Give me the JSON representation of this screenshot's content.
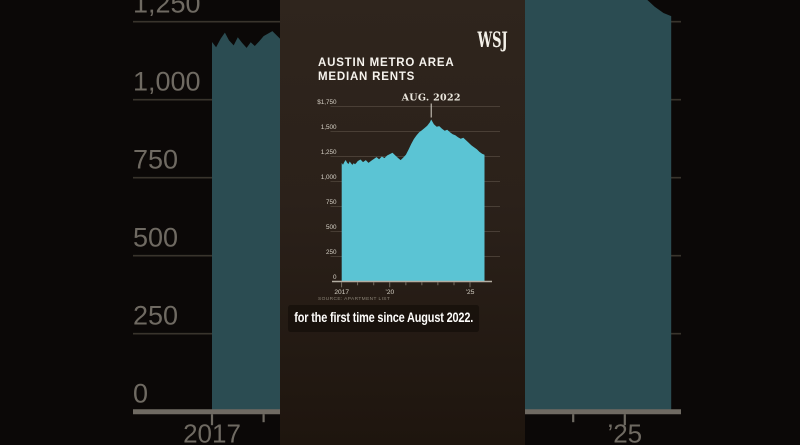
{
  "brand": {
    "logo_text": "WSJ"
  },
  "video": {
    "caption": "for the first time since August 2022."
  },
  "chart_data": {
    "type": "area",
    "title_lines": [
      "AUSTIN METRO AREA",
      "MEDIAN RENTS"
    ],
    "source": "SOURCE: APARTMENT LIST",
    "ylim": [
      0,
      1750
    ],
    "y_ticks": [
      1750,
      1500,
      1250,
      1000,
      750,
      500,
      250,
      0
    ],
    "y_tick_labels": [
      "$1,750",
      "1,500",
      "1,250",
      "1,000",
      "750",
      "500",
      "250",
      "0"
    ],
    "xlim": [
      2017,
      2025.9
    ],
    "x_ticks_labeled": [
      {
        "x": 2017,
        "label": "2017"
      },
      {
        "x": 2020,
        "label": "’20"
      },
      {
        "x": 2025,
        "label": "’25"
      }
    ],
    "x_minor_ticks_every_year": true,
    "grid": "horizontal",
    "legend": null,
    "annotation": {
      "label": "AUG. 2022",
      "x": 2022.58,
      "value": 1620
    },
    "series": [
      {
        "name": "Austin metro area median rent ($)",
        "x": [
          2017.0,
          2017.08,
          2017.17,
          2017.25,
          2017.33,
          2017.42,
          2017.5,
          2017.58,
          2017.67,
          2017.75,
          2017.83,
          2017.92,
          2018.0,
          2018.17,
          2018.33,
          2018.5,
          2018.67,
          2018.83,
          2019.0,
          2019.17,
          2019.33,
          2019.5,
          2019.67,
          2019.83,
          2020.0,
          2020.17,
          2020.33,
          2020.5,
          2020.67,
          2020.83,
          2021.0,
          2021.17,
          2021.33,
          2021.5,
          2021.67,
          2021.83,
          2022.0,
          2022.17,
          2022.33,
          2022.5,
          2022.58,
          2022.75,
          2022.92,
          2023.08,
          2023.25,
          2023.42,
          2023.58,
          2023.75,
          2023.92,
          2024.08,
          2024.25,
          2024.42,
          2024.58,
          2024.75,
          2024.92,
          2025.08,
          2025.25,
          2025.42,
          2025.58,
          2025.75,
          2025.9
        ],
        "values": [
          1185,
          1168,
          1196,
          1215,
          1190,
          1174,
          1200,
          1183,
          1166,
          1184,
          1172,
          1188,
          1204,
          1220,
          1194,
          1214,
          1186,
          1206,
          1225,
          1244,
          1222,
          1250,
          1234,
          1260,
          1274,
          1288,
          1262,
          1238,
          1214,
          1238,
          1268,
          1320,
          1375,
          1425,
          1462,
          1492,
          1512,
          1535,
          1558,
          1592,
          1620,
          1572,
          1548,
          1554,
          1528,
          1508,
          1518,
          1492,
          1472,
          1462,
          1442,
          1428,
          1438,
          1412,
          1388,
          1362,
          1342,
          1322,
          1298,
          1278,
          1268
        ]
      }
    ],
    "colors": {
      "area": "#5bc4d4",
      "area_dim_background": "#2b4c52",
      "grid": "#544a40",
      "grid_background": "#39342c",
      "axis": "#b3ada1",
      "axis_background": "#6f6a62",
      "tick_label": "#d6d1c6",
      "bg_text": "#6f6a62",
      "annotation_text": "#ece8df",
      "annotation_line": "#d8d3c9",
      "source_text": "#8b8377",
      "panel_bg": "#2b211a",
      "outer_bg": "#0b0807"
    }
  }
}
